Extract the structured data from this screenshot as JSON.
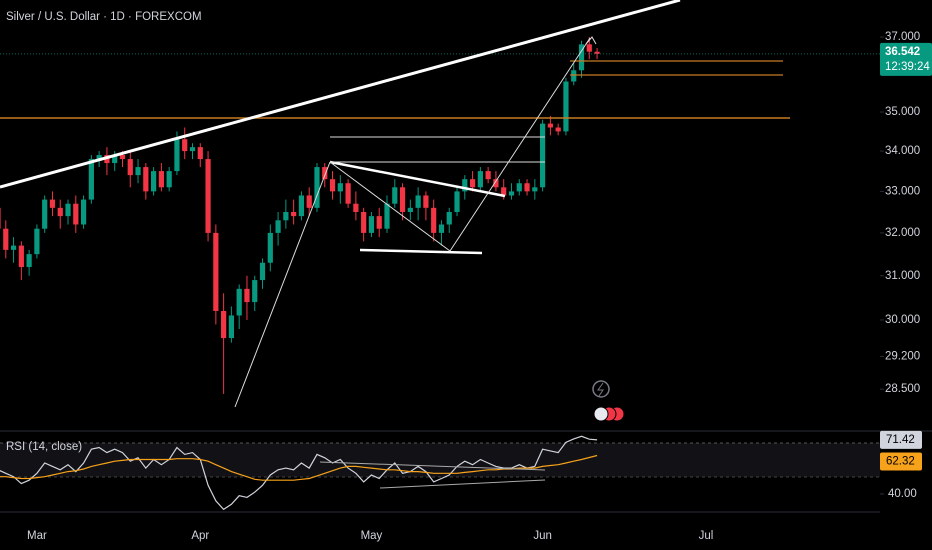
{
  "chart_data": [
    {
      "type": "candlestick",
      "title": "Silver / U.S. Dollar · 1D · FOREXCOM",
      "countdown": "12:39:24",
      "categories": [
        null,
        null,
        null,
        null,
        null,
        "Mar",
        null,
        null,
        null,
        null,
        null,
        null,
        null,
        null,
        null,
        null,
        null,
        null,
        null,
        null,
        null,
        null,
        null,
        null,
        null,
        null,
        "Apr",
        null,
        null,
        null,
        null,
        null,
        null,
        null,
        null,
        null,
        null,
        null,
        null,
        null,
        null,
        null,
        null,
        null,
        null,
        null,
        null,
        null,
        "May",
        null,
        null,
        null,
        null,
        null,
        null,
        null,
        null,
        null,
        null,
        null,
        null,
        null,
        null,
        null,
        null,
        null,
        null,
        null,
        null,
        null,
        "Jun",
        null,
        null,
        null,
        null,
        null,
        null,
        null,
        null,
        null,
        null,
        null,
        null,
        null,
        null,
        null,
        null,
        null,
        null,
        null,
        null,
        "Jul",
        null,
        null,
        null,
        null,
        null,
        null,
        null,
        null,
        null,
        null,
        null,
        null,
        null,
        null,
        null,
        null,
        null,
        null,
        null,
        null,
        null
      ],
      "open": [
        32.6,
        32.1,
        31.6,
        31.7,
        31.2,
        31.5,
        32.1,
        32.8,
        32.6,
        32.4,
        32.7,
        32.2,
        32.8,
        33.8,
        33.9,
        33.7,
        33.9,
        33.8,
        33.4,
        33.6,
        33.0,
        33.5,
        33.1,
        33.5,
        34.3,
        34.0,
        34.1,
        33.8,
        32.0,
        30.2,
        29.6,
        30.1,
        30.7,
        30.4,
        30.9,
        31.3,
        32.0,
        32.3,
        32.5,
        32.4,
        32.9,
        32.6,
        33.6,
        33.3,
        33.0,
        33.2,
        32.7,
        32.5,
        32.0,
        32.4,
        32.1,
        32.7,
        33.1,
        32.5,
        32.6,
        32.9,
        32.6,
        32.0,
        32.2,
        32.5,
        33.0,
        33.3,
        33.1,
        33.5,
        33.3,
        33.1,
        32.9,
        33.0,
        33.2,
        33.0,
        33.1,
        34.7,
        34.6,
        34.5,
        35.8,
        36.1,
        36.8,
        36.6,
        null,
        null,
        null,
        null,
        null,
        null,
        null,
        null,
        null,
        null,
        null,
        null,
        null,
        null,
        null,
        null,
        null,
        null,
        null,
        null,
        null,
        null,
        null,
        null,
        null,
        null,
        null,
        null,
        null,
        null,
        null,
        null,
        null,
        null,
        null
      ],
      "high": [
        32.8,
        32.3,
        31.9,
        31.8,
        31.6,
        32.2,
        32.9,
        33.0,
        32.8,
        32.8,
        32.9,
        32.9,
        33.9,
        34.0,
        34.1,
        34.0,
        34.0,
        34.0,
        33.8,
        33.7,
        33.6,
        33.7,
        33.6,
        34.5,
        34.6,
        34.2,
        34.2,
        34.0,
        32.2,
        30.6,
        30.3,
        30.8,
        31.0,
        31.0,
        31.4,
        32.2,
        32.5,
        32.8,
        32.8,
        33.0,
        33.1,
        33.7,
        33.7,
        33.5,
        33.4,
        33.3,
        33.0,
        32.6,
        32.5,
        32.6,
        32.9,
        33.3,
        33.2,
        32.8,
        33.1,
        33.0,
        32.8,
        32.3,
        32.6,
        33.1,
        33.4,
        33.5,
        33.6,
        33.6,
        33.5,
        33.3,
        33.2,
        33.3,
        33.3,
        33.3,
        34.8,
        34.9,
        34.7,
        35.9,
        36.3,
        36.9,
        37.0,
        36.7,
        null,
        null,
        null,
        null,
        null,
        null,
        null,
        null,
        null,
        null,
        null,
        null,
        null,
        null,
        null,
        null,
        null,
        null,
        null,
        null,
        null,
        null,
        null,
        null,
        null,
        null,
        null,
        null,
        null,
        null,
        null,
        null,
        null,
        null,
        null
      ],
      "low": [
        31.9,
        31.4,
        31.3,
        30.9,
        31.0,
        31.4,
        32.0,
        32.4,
        32.1,
        32.2,
        32.0,
        32.1,
        32.7,
        33.6,
        33.4,
        33.5,
        33.6,
        33.1,
        33.2,
        32.8,
        32.9,
        33.0,
        33.0,
        33.4,
        33.8,
        33.8,
        33.6,
        31.8,
        29.9,
        28.4,
        29.5,
        29.8,
        30.0,
        30.2,
        30.7,
        31.1,
        31.7,
        32.1,
        32.2,
        32.3,
        32.4,
        32.5,
        33.1,
        32.8,
        32.7,
        32.6,
        32.3,
        31.8,
        31.9,
        31.9,
        32.0,
        32.6,
        32.3,
        32.3,
        32.3,
        32.3,
        31.8,
        31.7,
        32.0,
        32.4,
        32.8,
        33.0,
        33.0,
        33.2,
        33.0,
        32.8,
        32.8,
        32.9,
        32.9,
        32.8,
        33.0,
        34.4,
        34.4,
        34.4,
        35.7,
        35.9,
        36.4,
        36.4,
        null,
        null,
        null,
        null,
        null,
        null,
        null,
        null,
        null,
        null,
        null,
        null,
        null,
        null,
        null,
        null,
        null,
        null,
        null,
        null,
        null,
        null,
        null,
        null,
        null,
        null,
        null,
        null,
        null,
        null,
        null,
        null,
        null,
        null,
        null
      ],
      "close": [
        32.1,
        31.6,
        31.7,
        31.2,
        31.5,
        32.1,
        32.8,
        32.6,
        32.4,
        32.7,
        32.2,
        32.8,
        33.8,
        33.9,
        33.7,
        33.9,
        33.8,
        33.4,
        33.6,
        33.0,
        33.5,
        33.1,
        33.5,
        34.3,
        34.0,
        34.1,
        33.8,
        32.0,
        30.2,
        29.6,
        30.1,
        30.7,
        30.4,
        30.9,
        31.3,
        32.0,
        32.3,
        32.5,
        32.4,
        32.9,
        32.6,
        33.6,
        33.3,
        33.0,
        33.2,
        32.7,
        32.5,
        32.0,
        32.4,
        32.1,
        32.7,
        33.1,
        32.5,
        32.6,
        32.9,
        32.6,
        32.0,
        32.2,
        32.5,
        33.0,
        33.3,
        33.1,
        33.5,
        33.3,
        33.1,
        32.9,
        33.0,
        33.2,
        33.0,
        33.1,
        34.7,
        34.6,
        34.5,
        35.8,
        36.1,
        36.8,
        36.6,
        36.542,
        null,
        null,
        null,
        null,
        null,
        null,
        null,
        null,
        null,
        null,
        null,
        null,
        null,
        null,
        null,
        null,
        null,
        null,
        null,
        null,
        null,
        null,
        null,
        null,
        null,
        null,
        null,
        null,
        null,
        null,
        null,
        null,
        null,
        null,
        null
      ],
      "up_color": "#089981",
      "down_color": "#f23645",
      "log": true,
      "grid": false,
      "ylim": [
        27.65,
        38.03
      ],
      "yticks": [
        {
          "value": 37,
          "label": "37.000"
        },
        {
          "value": 35,
          "label": "35.000"
        },
        {
          "value": 34,
          "label": "34.000"
        },
        {
          "value": 33,
          "label": "33.000"
        },
        {
          "value": 32,
          "label": "32.000"
        },
        {
          "value": 31,
          "label": "31.000"
        },
        {
          "value": 30,
          "label": "30.000"
        },
        {
          "value": 29.2,
          "label": "29.200"
        },
        {
          "value": 28.5,
          "label": "28.500"
        }
      ]
    },
    {
      "type": "line",
      "title": "RSI (14, close)",
      "series": [
        {
          "color": "#d1d4dc",
          "values": [
            54,
            52,
            50,
            46,
            48,
            52,
            58,
            56,
            54,
            57,
            53,
            58,
            66,
            67,
            64,
            66,
            64,
            59,
            61,
            55,
            60,
            57,
            60,
            67,
            63,
            64,
            60,
            45,
            36,
            31,
            34,
            39,
            38,
            41,
            45,
            51,
            54,
            55,
            54,
            58,
            55,
            63,
            61,
            58,
            60,
            55,
            52,
            47,
            51,
            49,
            54,
            58,
            52,
            53,
            56,
            53,
            47,
            49,
            51,
            56,
            59,
            57,
            60,
            58,
            56,
            55,
            55,
            57,
            55,
            56,
            66,
            65,
            64,
            70,
            72,
            73.5,
            71.8,
            71.42,
            null,
            null,
            null,
            null,
            null,
            null,
            null,
            null,
            null,
            null,
            null,
            null,
            null,
            null,
            null,
            null,
            null,
            null,
            null,
            null,
            null,
            null,
            null,
            null,
            null,
            null,
            null,
            null,
            null,
            null,
            null,
            null,
            null,
            null,
            null
          ]
        },
        {
          "color": "#f7a21b",
          "values": [
            50,
            50,
            49.5,
            49,
            49,
            49.5,
            50,
            51,
            52,
            53,
            53.5,
            54.5,
            56,
            57,
            58,
            59,
            59.5,
            60,
            60,
            60,
            60,
            60,
            60,
            60.5,
            60.5,
            60.5,
            60,
            59,
            57,
            55,
            53,
            51.5,
            50,
            48.5,
            48,
            48,
            48,
            48,
            48,
            48.5,
            49,
            50.5,
            52,
            53.5,
            55,
            56,
            56,
            55.5,
            55,
            54.5,
            54,
            54,
            53.5,
            53,
            53,
            52.5,
            52,
            52,
            52,
            52,
            52.5,
            53,
            53.5,
            54,
            54,
            54.5,
            54.5,
            55,
            55,
            55,
            56,
            56.5,
            57,
            58,
            59,
            60,
            61.2,
            62.32,
            null,
            null,
            null,
            null,
            null,
            null,
            null,
            null,
            null,
            null,
            null,
            null,
            null,
            null,
            null,
            null,
            null,
            null,
            null,
            null,
            null,
            null,
            null,
            null,
            null,
            null,
            null,
            null,
            null,
            null,
            null,
            null,
            null,
            null,
            null
          ]
        }
      ],
      "ylim": [
        29.5,
        76
      ],
      "yticks": [
        {
          "value": 40,
          "label": "40.00"
        }
      ]
    }
  ]
}
